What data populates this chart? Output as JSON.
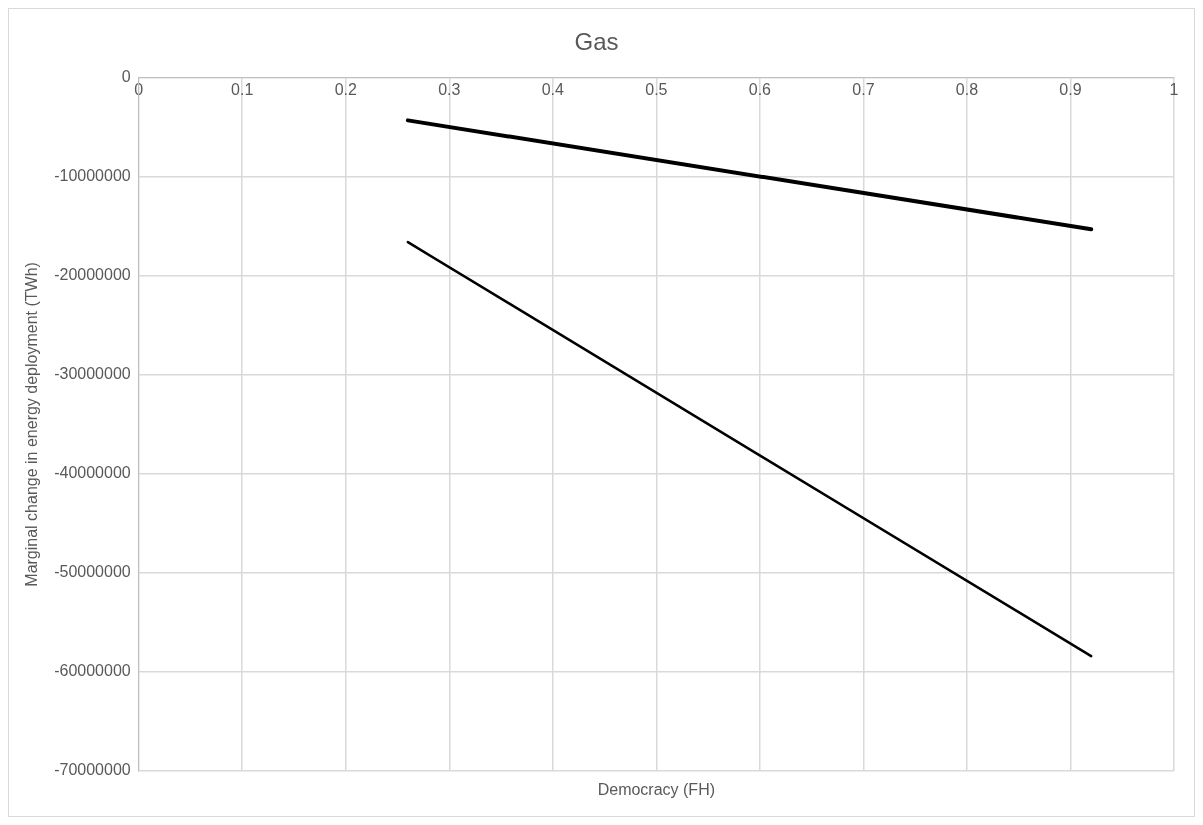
{
  "chart_data": {
    "type": "line",
    "title": "Gas",
    "xlabel": "Democracy (FH)",
    "ylabel": "Marginal change in energy deployment (TWh)",
    "xlim": [
      0,
      1
    ],
    "xticks": [
      0,
      0.1,
      0.2,
      0.3,
      0.4,
      0.5,
      0.6,
      0.7,
      0.8,
      0.9,
      1
    ],
    "ylim": [
      -70000000,
      0
    ],
    "yticks": [
      -70000000,
      -60000000,
      -50000000,
      -40000000,
      -30000000,
      -20000000,
      -10000000,
      0
    ],
    "x": [
      0.26,
      0.92
    ],
    "grid": true,
    "legend": false,
    "marker": "none",
    "line_style": "solid",
    "series": [
      {
        "color": "#000000",
        "values": [
          -4300000,
          -15300000
        ]
      },
      {
        "color": "#000000",
        "values": [
          -16600000,
          -58400000
        ]
      }
    ]
  }
}
